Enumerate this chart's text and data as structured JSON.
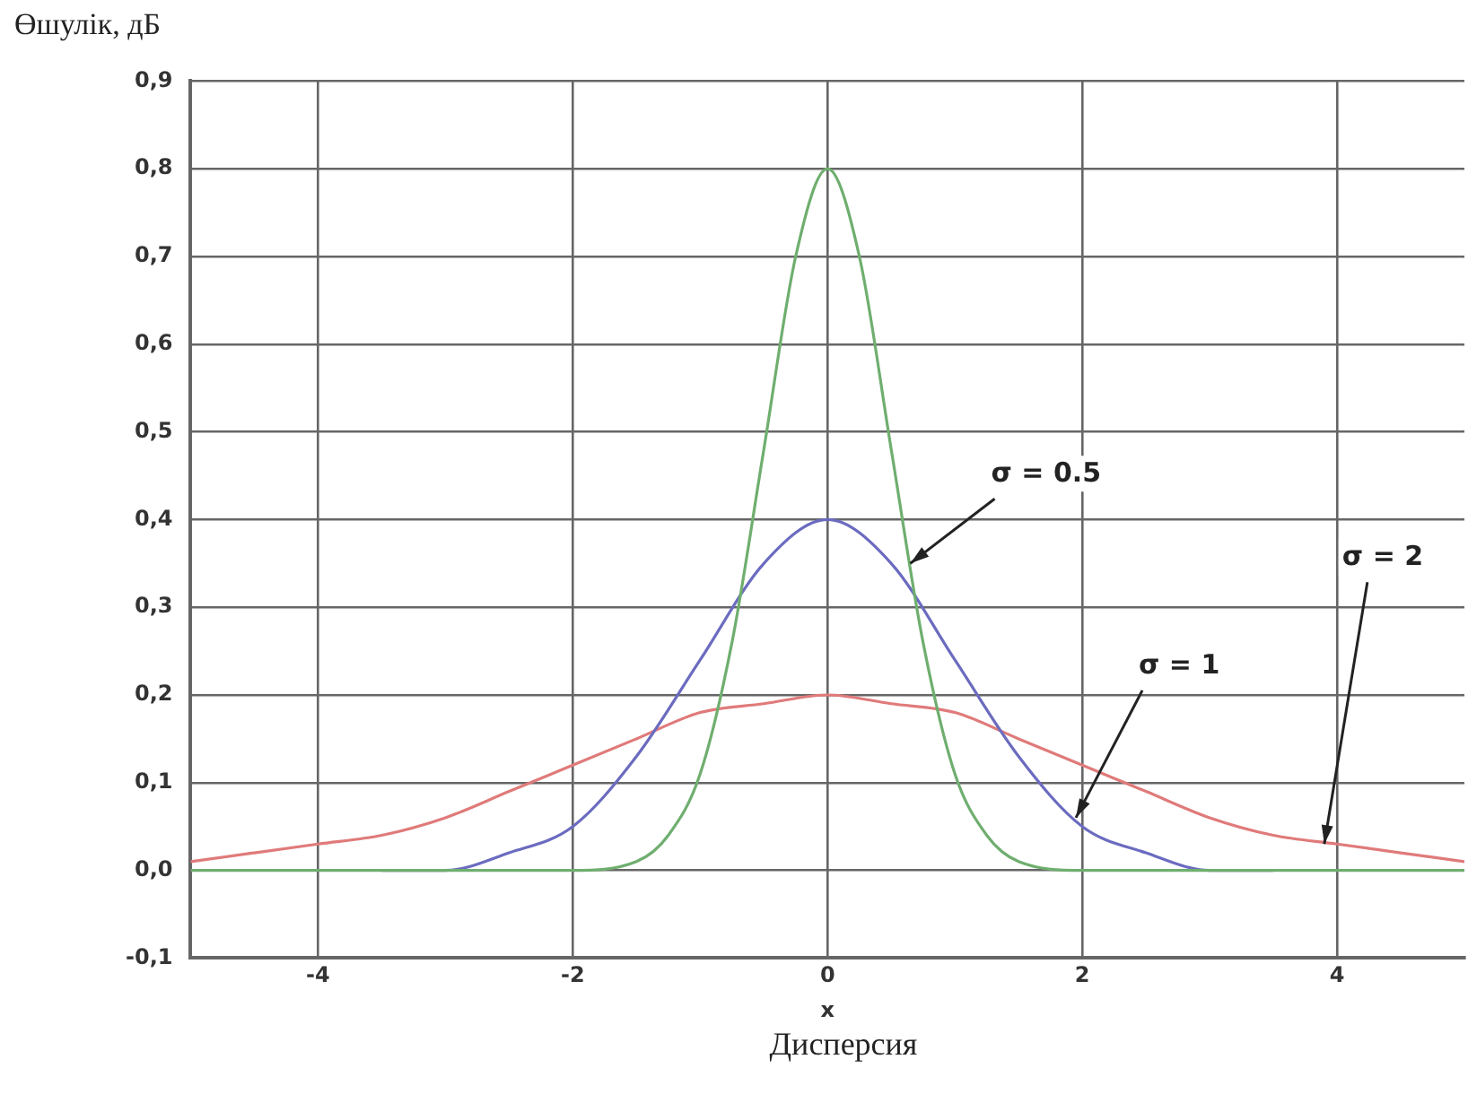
{
  "chart_data": {
    "type": "line",
    "xlabel": "x",
    "ylabel": "Өшулік, дБ",
    "xlim": [
      -5,
      5
    ],
    "xticks": [
      -4,
      -2,
      0,
      2,
      4
    ],
    "ylim": [
      -0.1,
      0.9
    ],
    "yticks": [
      {
        "value": -0.1,
        "label": "-0,1"
      },
      {
        "value": 0,
        "label": "0,0"
      },
      {
        "value": 0.1,
        "label": "0,1"
      },
      {
        "value": 0.2,
        "label": "0,2"
      },
      {
        "value": 0.3,
        "label": "0,3"
      },
      {
        "value": 0.4,
        "label": "0,4"
      },
      {
        "value": 0.5,
        "label": "0,5"
      },
      {
        "value": 0.6,
        "label": "0,6"
      },
      {
        "value": 0.7,
        "label": "0,7"
      },
      {
        "value": 0.8,
        "label": "0,8"
      },
      {
        "value": 0.9,
        "label": "0,9"
      }
    ],
    "grid": true,
    "legend": false,
    "marker": "none",
    "line_style": "solid",
    "series": [
      {
        "color": "#6fae6f",
        "x": [
          -5,
          -2,
          -1.5,
          -1.25,
          -1,
          -0.75,
          -0.5,
          -0.25,
          0,
          0.25,
          0.5,
          0.75,
          1,
          1.25,
          1.5,
          2,
          5
        ],
        "values": [
          0,
          0,
          0.01,
          0.04,
          0.11,
          0.26,
          0.48,
          0.7,
          0.8,
          0.7,
          0.48,
          0.26,
          0.11,
          0.04,
          0.01,
          0,
          0
        ]
      },
      {
        "color": "#6b6bc0",
        "x": [
          -3.5,
          -3,
          -2.5,
          -2,
          -1.5,
          -1,
          -0.5,
          0,
          0.5,
          1,
          1.5,
          2,
          2.5,
          3,
          3.5
        ],
        "values": [
          0,
          0,
          0.02,
          0.05,
          0.13,
          0.24,
          0.35,
          0.4,
          0.35,
          0.24,
          0.13,
          0.05,
          0.02,
          0,
          0
        ]
      },
      {
        "color": "#e07a7a",
        "x": [
          -5,
          -4.5,
          -4,
          -3.5,
          -3,
          -2.5,
          -2,
          -1.5,
          -1,
          -0.5,
          0,
          0.5,
          1,
          1.5,
          2,
          2.5,
          3,
          3.5,
          4,
          4.5,
          5
        ],
        "values": [
          0.01,
          0.02,
          0.03,
          0.04,
          0.06,
          0.09,
          0.12,
          0.15,
          0.18,
          0.19,
          0.2,
          0.19,
          0.18,
          0.15,
          0.12,
          0.09,
          0.06,
          0.04,
          0.03,
          0.02,
          0.01
        ]
      }
    ],
    "annotations": [
      {
        "text": "σ = 0.5",
        "x": 0.65,
        "y": 0.35
      },
      {
        "text": "σ = 1",
        "x": 1.95,
        "y": 0.06
      },
      {
        "text": "σ = 2",
        "x": 3.9,
        "y": 0.03
      },
      "Дисперсия"
    ]
  }
}
